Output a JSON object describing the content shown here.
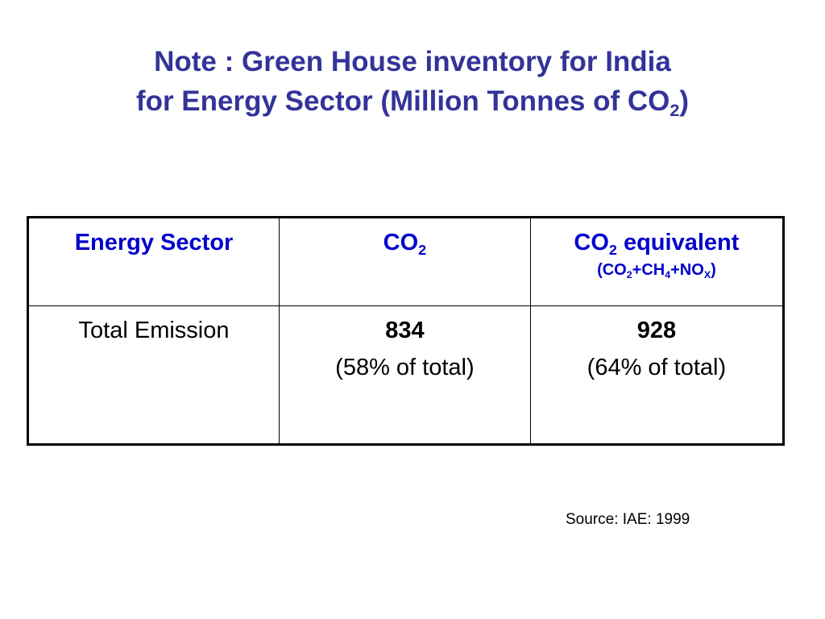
{
  "title": {
    "line1": "Note : Green House inventory for India",
    "line2_prefix": "for Energy Sector (Million Tonnes of CO",
    "line2_sub": "2",
    "line2_suffix": ")"
  },
  "table": {
    "headers": {
      "sector": "Energy Sector",
      "co2": {
        "prefix": "CO",
        "sub": "2"
      },
      "co2e": {
        "prefix": "CO",
        "sub": "2",
        "suffix": " equivalent",
        "formula": {
          "p1": "(CO",
          "s1": "2",
          "p2": "+CH",
          "s2": "4",
          "p3": "+NO",
          "s3": "X",
          "p4": ")"
        }
      }
    },
    "rows": [
      {
        "label": "Total Emission",
        "co2_value": "834",
        "co2_share": "(58% of total)",
        "co2e_value": "928",
        "co2e_share": "(64% of total)"
      }
    ]
  },
  "source": "Source: IAE: 1999",
  "colors": {
    "title": "#333399",
    "header_text": "#0000cc",
    "body_text": "#000000",
    "border": "#000000"
  }
}
